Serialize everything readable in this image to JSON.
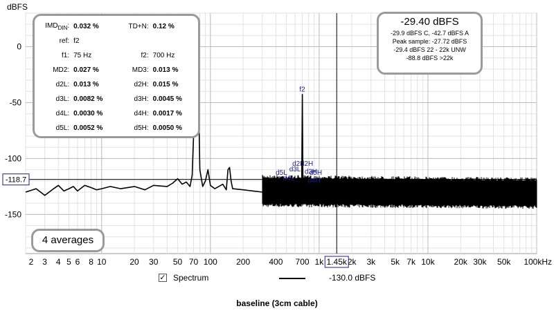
{
  "chart_data": {
    "type": "line",
    "title": "",
    "ylabel": "dBFS",
    "xlabel": "",
    "x_scale": "log",
    "xlim": [
      2,
      100000
    ],
    "ylim": [
      -185,
      30
    ],
    "y_ticks": [
      0,
      -50,
      -100,
      -150
    ],
    "y_tick_labels": [
      "0",
      "-50",
      "-100",
      "-150"
    ],
    "x_ticks": [
      2,
      3,
      4,
      5,
      6,
      8,
      10,
      20,
      30,
      50,
      70,
      100,
      200,
      400,
      700,
      1000,
      2000,
      3000,
      5000,
      7000,
      10000,
      20000,
      30000,
      50000,
      100000
    ],
    "x_tick_labels": [
      "2",
      "3",
      "4",
      "5",
      "6",
      "8",
      "10",
      "20",
      "30",
      "50",
      "70",
      "100",
      "200",
      "400",
      "700",
      "1k",
      "2k",
      "3k",
      "5k",
      "7k",
      "10k",
      "20k",
      "30k",
      "50k",
      "100kHz"
    ],
    "grid": true,
    "cursor": {
      "x": 1450,
      "x_label": "1.45k",
      "y": -118.7,
      "y_label": "-118.7"
    },
    "series": [
      {
        "name": "Spectrum",
        "color": "#000000",
        "x": [
          2,
          2.5,
          3,
          3.5,
          4,
          4.5,
          5,
          5.5,
          6,
          7,
          8,
          9,
          10,
          12,
          15,
          20,
          25,
          30,
          40,
          45,
          50,
          55,
          60,
          65,
          68,
          70,
          72,
          75,
          78,
          80,
          85,
          90,
          95,
          100,
          110,
          130,
          140,
          145,
          150,
          155,
          160,
          200,
          300,
          400,
          500,
          600,
          650,
          690,
          700,
          710,
          750,
          800,
          1000,
          1500,
          2000,
          3000,
          5000,
          7000,
          10000,
          20000,
          30000,
          50000,
          70000,
          100000
        ],
        "y": [
          -130,
          -127,
          -133,
          -128,
          -124,
          -129,
          -127,
          -125,
          -129,
          -124,
          -126,
          -128,
          -127,
          -125,
          -127,
          -125,
          -128,
          -124,
          -125,
          -122,
          -118,
          -123,
          -121,
          -125,
          -115,
          -80,
          -45,
          -29.4,
          -50,
          -110,
          -125,
          -120,
          -110,
          -124,
          -127,
          -123,
          -128,
          -110,
          -108,
          -120,
          -127,
          -128,
          -130,
          -131,
          -132,
          -133,
          -132,
          -128,
          -42.7,
          -128,
          -134,
          -133,
          -132,
          -131,
          -131,
          -131,
          -131,
          -131,
          -131,
          -131,
          -131,
          -131,
          -131,
          -131
        ]
      }
    ],
    "noise_band": {
      "x_start": 300,
      "x_end": 100000,
      "floor": -145,
      "ceiling": -117
    },
    "annotations": [
      {
        "text": "f1",
        "x": 75,
        "y": -29.4
      },
      {
        "text": "f2",
        "x": 700,
        "y": -42.7
      },
      {
        "text": "d5L",
        "x": 450,
        "y": -117
      },
      {
        "text": "d4L",
        "x": 525,
        "y": -122
      },
      {
        "text": "d3L",
        "x": 600,
        "y": -114
      },
      {
        "text": "d2L",
        "x": 640,
        "y": -109
      },
      {
        "text": "d2H",
        "x": 770,
        "y": -109
      },
      {
        "text": "d3H",
        "x": 840,
        "y": -116
      },
      {
        "text": "d5H",
        "x": 930,
        "y": -117
      },
      {
        "text": "d4H",
        "x": 900,
        "y": -124
      }
    ]
  },
  "imd_panel": {
    "rows": [
      {
        "l1": "IMD",
        "l1_sub": "DIN",
        "v1": "0.032 %",
        "l2": "TD+N:",
        "v2": "0.12 %"
      },
      {
        "l1": "ref:",
        "v1": "f2",
        "l2": "",
        "v2": ""
      },
      {
        "l1": "f1:",
        "v1": "75 Hz",
        "l2": "f2:",
        "v2": "700 Hz"
      },
      {
        "l1": "MD2:",
        "v1": "0.027 %",
        "l2": "MD3:",
        "v2": "0.013 %"
      },
      {
        "l1": "d2L:",
        "v1": "0.013 %",
        "l2": "d2H:",
        "v2": "0.015 %"
      },
      {
        "l1": "d3L:",
        "v1": "0.0082 %",
        "l2": "d3H:",
        "v2": "0.0045 %"
      },
      {
        "l1": "d4L:",
        "v1": "0.0030 %",
        "l2": "d4H:",
        "v2": "0.0017 %"
      },
      {
        "l1": "d5L:",
        "v1": "0.0052 %",
        "l2": "d5H:",
        "v2": "0.0050 %"
      }
    ]
  },
  "level_panel": {
    "main": "-29.40 dBFS",
    "lines": [
      "-29.9 dBFS C, -42.7 dBFS A",
      "Peak sample: -27.72 dBFS",
      "-29.4 dBFS 22 - 22k UNW",
      "-88.8 dBFS >22k"
    ]
  },
  "averages": "4 averages",
  "legend": {
    "checked": true,
    "check_glyph": "✓",
    "series_label": "Spectrum",
    "level_label": "-130.0 dBFS"
  },
  "caption": "baseline (3cm cable)"
}
